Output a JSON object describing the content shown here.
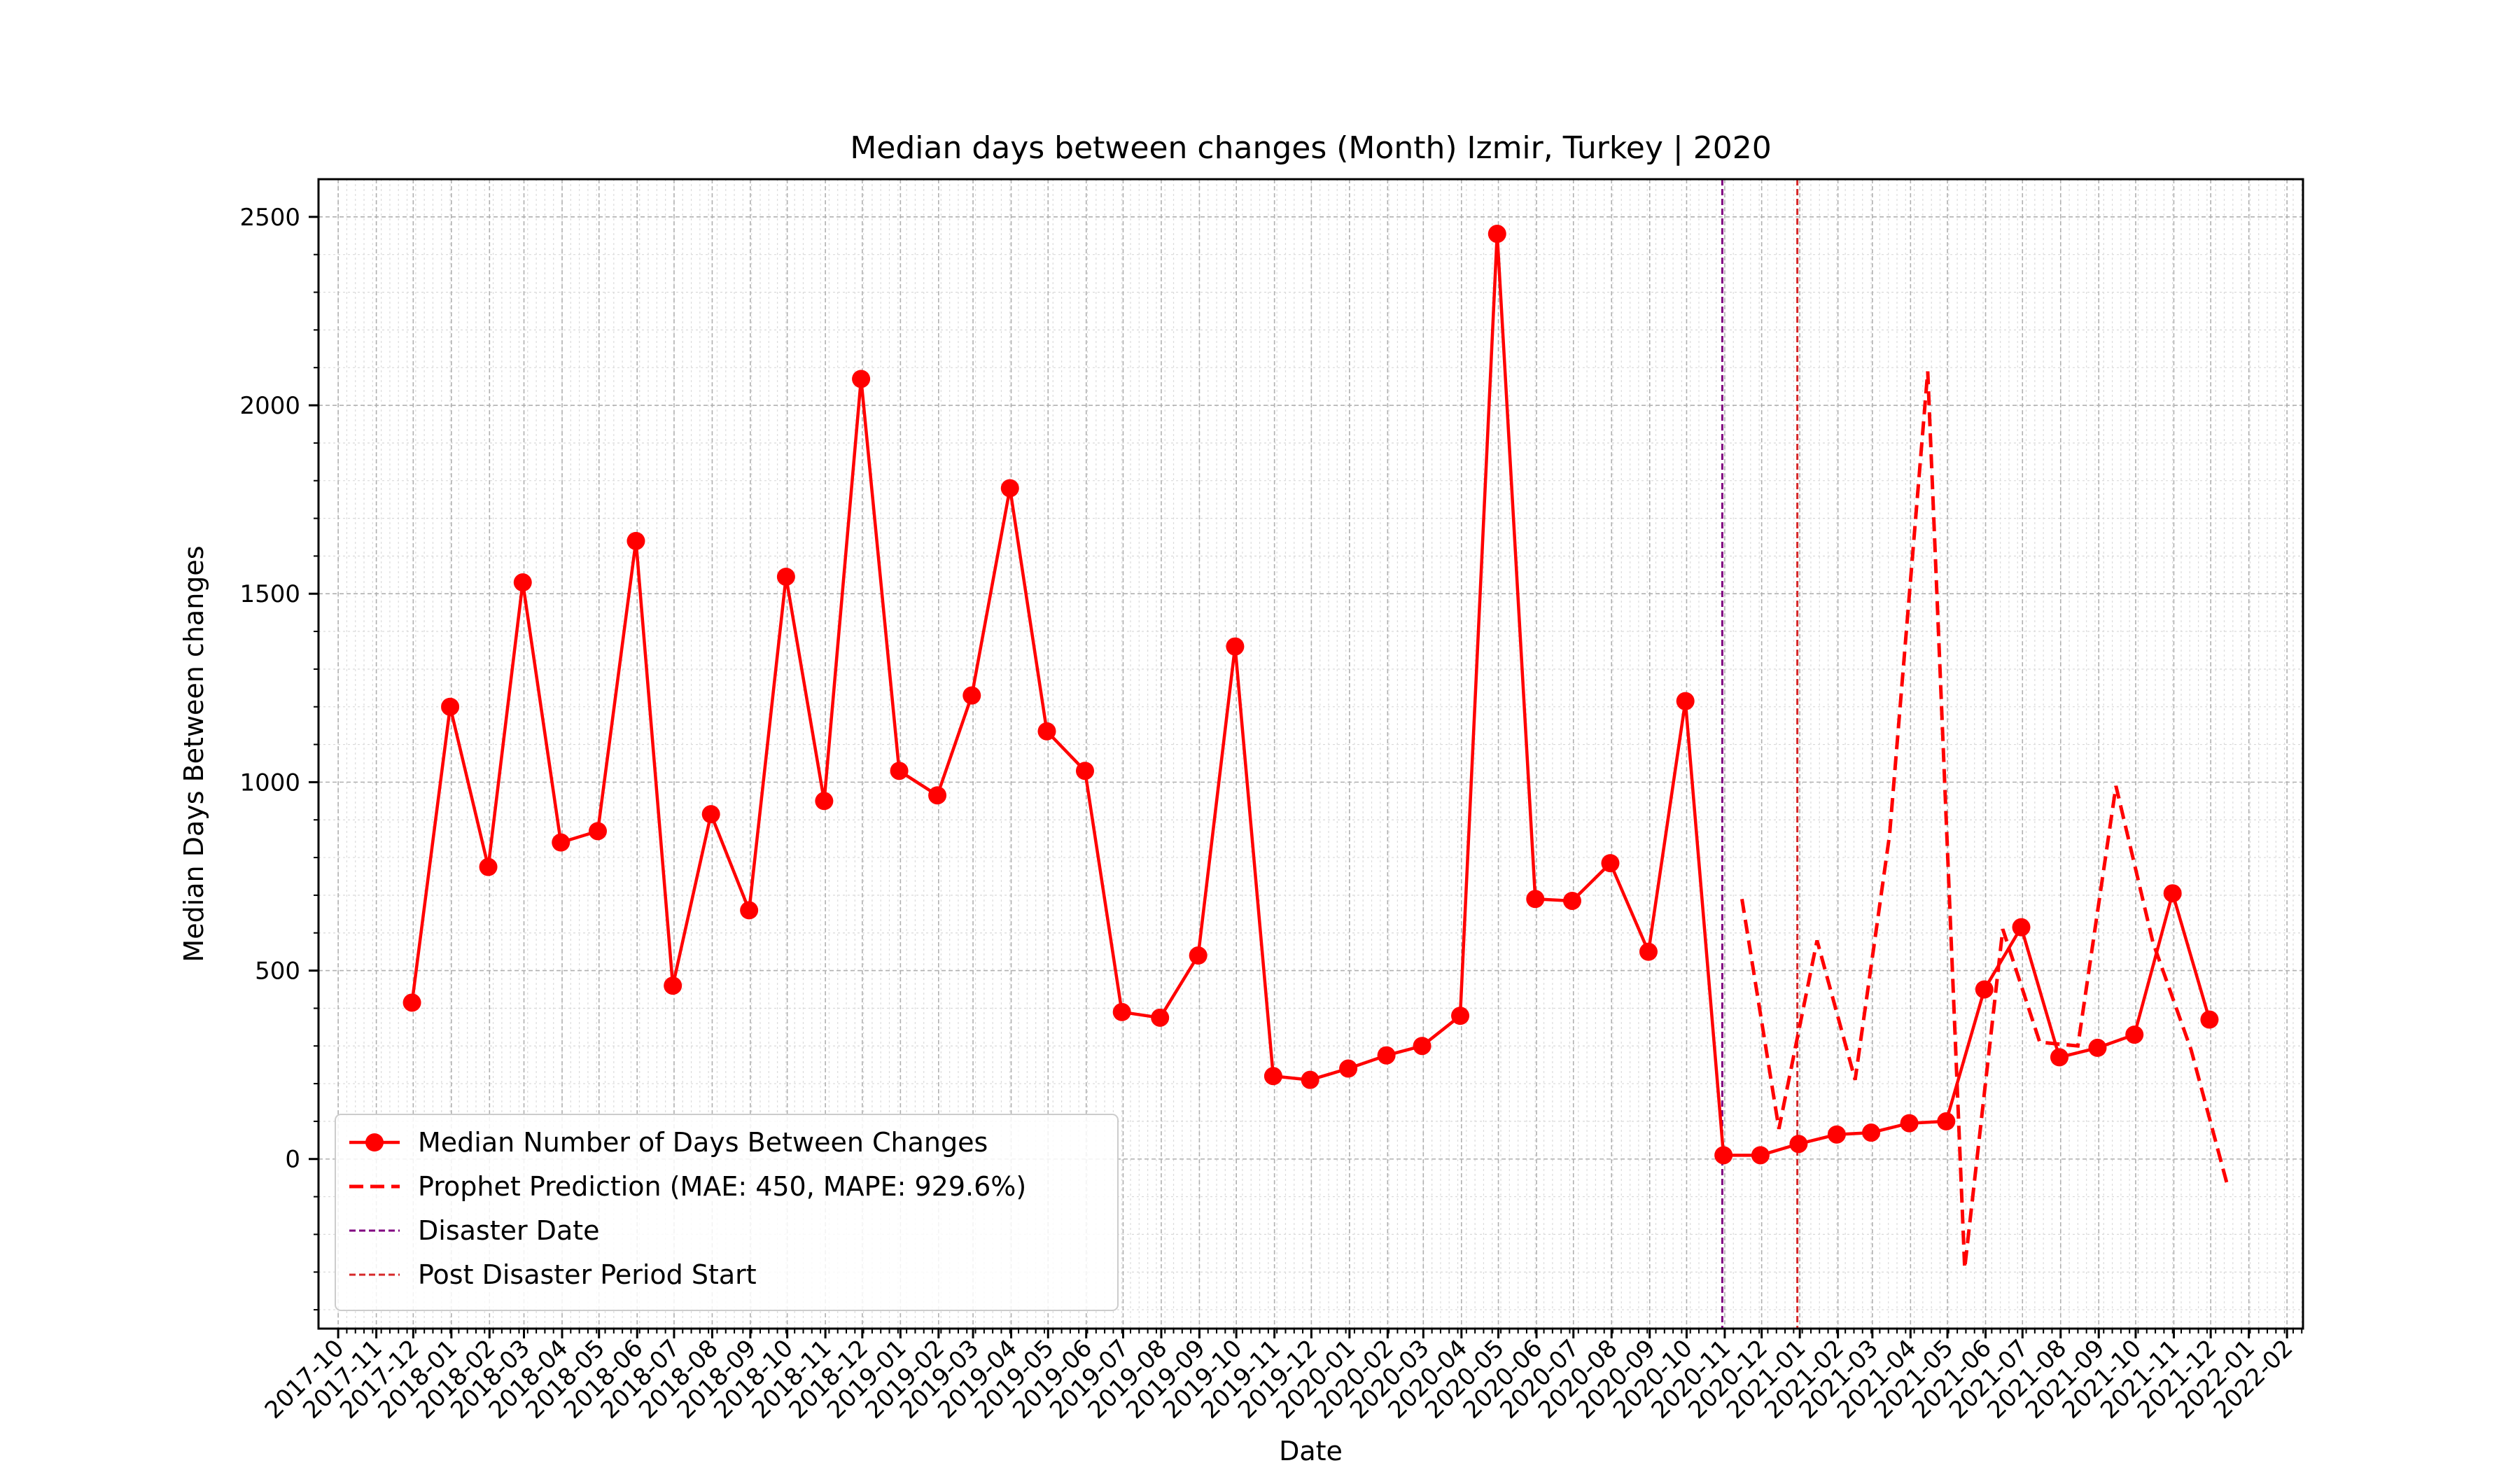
{
  "chart_data": {
    "type": "line",
    "title": "Median days between changes (Month) Izmir, Turkey | 2020",
    "xlabel": "Date",
    "ylabel": "Median Days Between changes",
    "ylim": [
      -450,
      2600
    ],
    "yticks": [
      0,
      500,
      1000,
      1500,
      2000,
      2500
    ],
    "xlim": [
      "2017-09-15",
      "2022-02-14"
    ],
    "xticks": [
      "2017-10",
      "2017-11",
      "2017-12",
      "2018-01",
      "2018-02",
      "2018-03",
      "2018-04",
      "2018-05",
      "2018-06",
      "2018-07",
      "2018-08",
      "2018-09",
      "2018-10",
      "2018-11",
      "2018-12",
      "2019-01",
      "2019-02",
      "2019-03",
      "2019-04",
      "2019-05",
      "2019-06",
      "2019-07",
      "2019-08",
      "2019-09",
      "2019-10",
      "2019-11",
      "2019-12",
      "2020-01",
      "2020-02",
      "2020-03",
      "2020-04",
      "2020-05",
      "2020-06",
      "2020-07",
      "2020-08",
      "2020-09",
      "2020-10",
      "2020-11",
      "2020-12",
      "2021-01",
      "2021-02",
      "2021-03",
      "2021-04",
      "2021-05",
      "2021-06",
      "2021-07",
      "2021-08",
      "2021-09",
      "2021-10",
      "2021-11",
      "2021-12",
      "2022-01",
      "2022-02"
    ],
    "grid": true,
    "legend_position": "lower-left",
    "series": [
      {
        "name": "Median Number of Days Between Changes",
        "color": "#ff0000",
        "style": "solid-markers",
        "x": [
          "2017-11-30",
          "2017-12-31",
          "2018-01-31",
          "2018-02-28",
          "2018-03-31",
          "2018-04-30",
          "2018-05-31",
          "2018-06-30",
          "2018-07-31",
          "2018-08-31",
          "2018-09-30",
          "2018-10-31",
          "2018-11-30",
          "2018-12-31",
          "2019-01-31",
          "2019-02-28",
          "2019-03-31",
          "2019-04-30",
          "2019-05-31",
          "2019-06-30",
          "2019-07-31",
          "2019-08-31",
          "2019-09-30",
          "2019-10-31",
          "2019-11-30",
          "2019-12-31",
          "2020-01-31",
          "2020-02-29",
          "2020-03-31",
          "2020-04-30",
          "2020-05-31",
          "2020-06-30",
          "2020-07-31",
          "2020-08-31",
          "2020-09-30",
          "2020-10-31",
          "2020-11-30",
          "2020-12-31",
          "2021-01-31",
          "2021-02-28",
          "2021-03-31",
          "2021-04-30",
          "2021-05-31",
          "2021-06-30",
          "2021-07-31",
          "2021-08-31",
          "2021-09-30",
          "2021-10-31",
          "2021-11-30"
        ],
        "values": [
          415,
          1200,
          775,
          1530,
          840,
          870,
          1640,
          460,
          915,
          660,
          1545,
          950,
          2070,
          1030,
          965,
          1230,
          1780,
          1135,
          1030,
          390,
          375,
          540,
          1360,
          220,
          210,
          240,
          275,
          300,
          380,
          2455,
          690,
          685,
          785,
          550,
          1215,
          10,
          10,
          40,
          65,
          70,
          95,
          100,
          450,
          615,
          270,
          295,
          330,
          705,
          370
        ]
      },
      {
        "name": "Prophet Prediction (MAE: 450, MAPE: 929.6%)",
        "color": "#ff0000",
        "style": "dashed",
        "x": [
          "2020-11-15",
          "2020-12-15",
          "2021-01-15",
          "2021-02-15",
          "2021-03-15",
          "2021-04-15",
          "2021-05-15",
          "2021-06-15",
          "2021-07-15",
          "2021-08-15",
          "2021-09-15",
          "2021-10-15",
          "2021-11-15",
          "2021-12-15"
        ],
        "values": [
          690,
          80,
          580,
          210,
          860,
          2090,
          -290,
          610,
          310,
          300,
          990,
          575,
          290,
          -75
        ]
      }
    ],
    "vlines": [
      {
        "name": "Disaster Date",
        "date": "2020-10-30",
        "color": "#800080"
      },
      {
        "name": "Post Disaster Period Start",
        "date": "2020-12-30",
        "color": "#d62728"
      }
    ]
  }
}
